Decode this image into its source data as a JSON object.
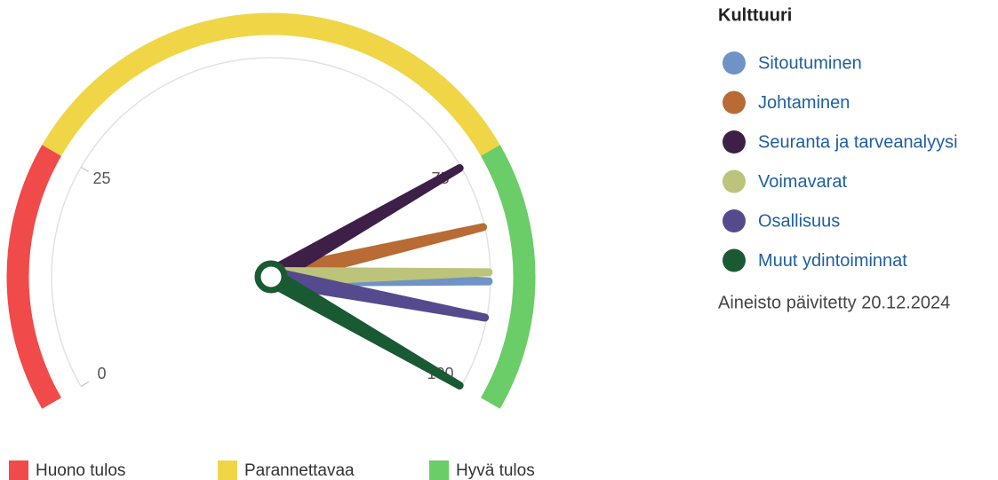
{
  "chart_data": {
    "type": "gauge",
    "title": "Kulttuuri",
    "range": [
      0,
      100
    ],
    "ticks": [
      0,
      25,
      75,
      100
    ],
    "bands": [
      {
        "name": "Huono tulos",
        "color": "#f04a4a",
        "from": 0,
        "to": 25
      },
      {
        "name": "Parannettavaa",
        "color": "#f0d647",
        "from": 25,
        "to": 75
      },
      {
        "name": "Hyvä tulos",
        "color": "#6acd67",
        "from": 75,
        "to": 100
      }
    ],
    "series": [
      {
        "name": "Sitoutuminen",
        "color": "#6f93c6",
        "values": [
          88
        ]
      },
      {
        "name": "Johtaminen",
        "color": "#b86b35",
        "values": [
          82
        ]
      },
      {
        "name": "Seuranta ja tarveanalyysi",
        "color": "#3d1f47",
        "values": [
          75
        ]
      },
      {
        "name": "Voimavarat",
        "color": "#bbc47a",
        "values": [
          87
        ]
      },
      {
        "name": "Osallisuus",
        "color": "#564a8e",
        "values": [
          92
        ]
      },
      {
        "name": "Muut ydintoiminnat",
        "color": "#1a5a33",
        "values": [
          100
        ]
      }
    ],
    "footnote": "Aineisto päivitetty 20.12.2024"
  }
}
